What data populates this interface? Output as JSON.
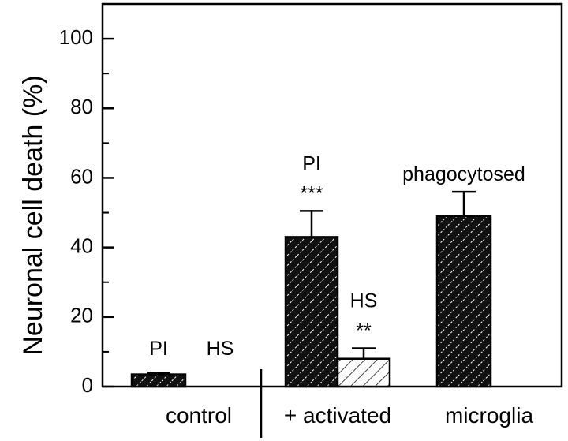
{
  "chart_data": {
    "type": "bar",
    "ylabel": "Neuronal cell death (%)",
    "ylim": [
      0,
      110
    ],
    "yticks": [
      0,
      20,
      40,
      60,
      80,
      100
    ],
    "grid": false,
    "bars": [
      {
        "label": "PI",
        "annotation": "",
        "value": 3.5,
        "error": 0.5,
        "pattern": "dark",
        "group": "control"
      },
      {
        "label": "HS",
        "annotation": "",
        "value": 0,
        "error": 0,
        "pattern": "light",
        "group": "control"
      },
      {
        "label": "PI",
        "annotation": "***",
        "value": 43,
        "error": 7.5,
        "pattern": "dark",
        "group": "+ activated microglia"
      },
      {
        "label": "HS",
        "annotation": "**",
        "value": 8,
        "error": 3,
        "pattern": "light",
        "group": "+ activated microglia"
      },
      {
        "label": "phagocytosed",
        "annotation": "",
        "value": 49,
        "error": 7,
        "pattern": "dark",
        "group": "+ activated microglia"
      }
    ],
    "group_labels": {
      "control": "control",
      "activated_prefix": "+ activated",
      "activated_suffix": "microglia"
    }
  }
}
